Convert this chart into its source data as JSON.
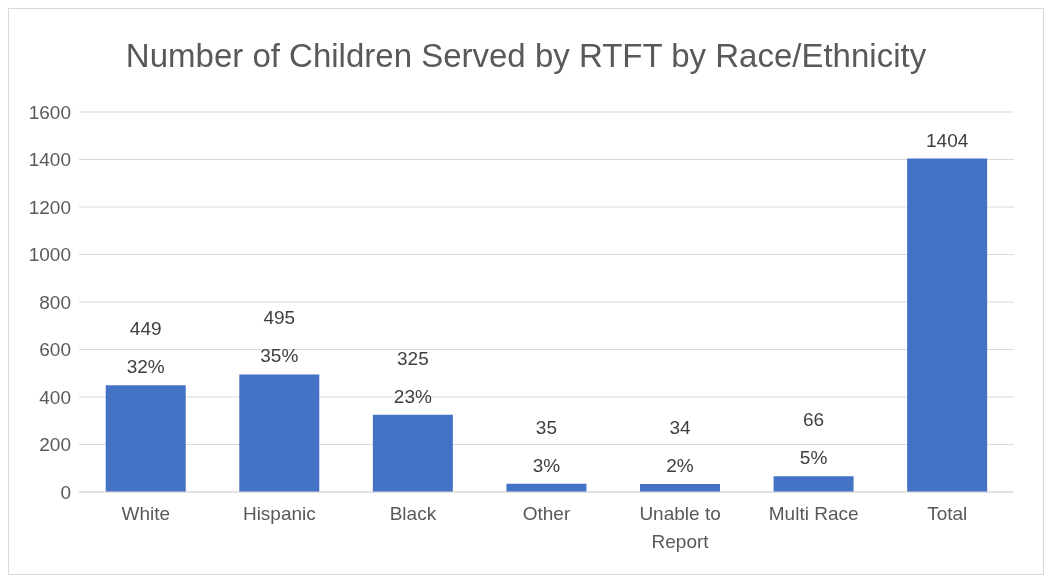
{
  "chart_data": {
    "type": "bar",
    "title": "Number of Children Served by RTFT by Race/Ethnicity",
    "categories": [
      "White",
      "Hispanic",
      "Black",
      "Other",
      "Unable to\nReport",
      "Multi Race",
      "Total"
    ],
    "values": [
      449,
      495,
      325,
      35,
      34,
      66,
      1404
    ],
    "value_labels": [
      "449\n32%",
      "495\n35%",
      "325\n23%",
      "35\n3%",
      "34\n2%",
      "66\n5%",
      "1404"
    ],
    "color": "#4472c4",
    "ylim": [
      0,
      1600
    ],
    "yticks": [
      0,
      200,
      400,
      600,
      800,
      1000,
      1200,
      1400,
      1600
    ],
    "grid": "y"
  }
}
